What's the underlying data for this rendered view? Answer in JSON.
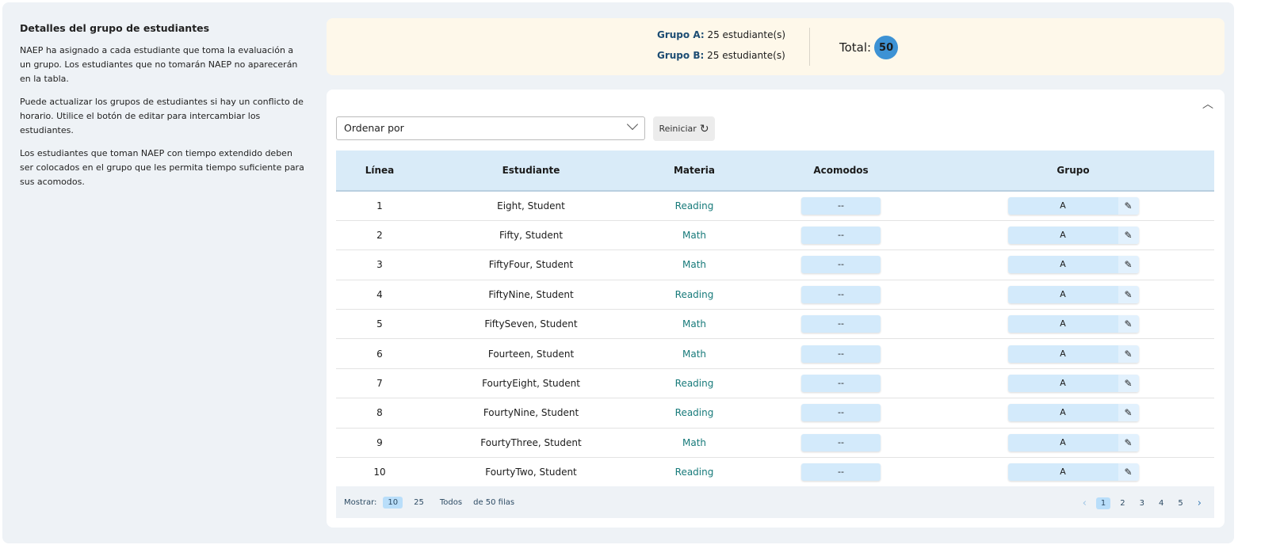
{
  "left": {
    "title": "Detalles del grupo de estudiantes",
    "paragraphs": [
      "NAEP ha asignado a cada estudiante que toma la evaluación a un grupo. Los estudiantes que no tomarán NAEP no aparecerán en la tabla.",
      "Puede actualizar los grupos de estudiantes si hay un conflicto de horario. Utilice el botón de editar para intercambiar los estudiantes.",
      "Los estudiantes que toman NAEP con tiempo extendido deben ser colocados en el grupo que les permita tiempo suficiente para sus acomodos."
    ]
  },
  "summary": {
    "group_a_label": "Grupo A:",
    "group_a_value": "25 estudiante(s)",
    "group_b_label": "Grupo B:",
    "group_b_value": "25 estudiante(s)",
    "total_label": "Total:",
    "total_value": "50"
  },
  "toolbar": {
    "sort_placeholder": "Ordenar por",
    "reset_label": "Reiniciar"
  },
  "table": {
    "headers": [
      "Línea",
      "Estudiante",
      "Materia",
      "Acomodos",
      "Grupo"
    ],
    "rows": [
      [
        "1",
        "Eight, Student",
        "Reading",
        "--",
        "A"
      ],
      [
        "2",
        "Fifty, Student",
        "Math",
        "--",
        "A"
      ],
      [
        "3",
        "FiftyFour, Student",
        "Math",
        "--",
        "A"
      ],
      [
        "4",
        "FiftyNine, Student",
        "Reading",
        "--",
        "A"
      ],
      [
        "5",
        "FiftySeven, Student",
        "Math",
        "--",
        "A"
      ],
      [
        "6",
        "Fourteen, Student",
        "Math",
        "--",
        "A"
      ],
      [
        "7",
        "FourtyEight, Student",
        "Reading",
        "--",
        "A"
      ],
      [
        "8",
        "FourtyNine, Student",
        "Reading",
        "--",
        "A"
      ],
      [
        "9",
        "FourtyThree, Student",
        "Math",
        "--",
        "A"
      ],
      [
        "10",
        "FourtyTwo, Student",
        "Reading",
        "--",
        "A"
      ]
    ]
  },
  "footer": {
    "show_label": "Mostrar:",
    "sizes": [
      "10",
      "25",
      "Todos"
    ],
    "rows_text": "de 50 filas",
    "pages": [
      "1",
      "2",
      "3",
      "4",
      "5"
    ]
  }
}
